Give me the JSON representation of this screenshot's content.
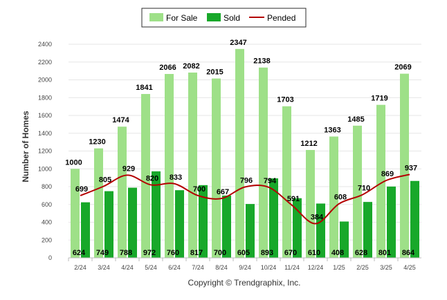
{
  "chart_data": {
    "type": "bar",
    "title": "",
    "xlabel": "",
    "ylabel": "Number of Homes",
    "ylim": [
      0,
      2400
    ],
    "yticks": [
      0,
      200,
      400,
      600,
      800,
      1000,
      1200,
      1400,
      1600,
      1800,
      2000,
      2200,
      2400
    ],
    "grid": true,
    "legend_position": "top-center",
    "categories": [
      "2/24",
      "3/24",
      "4/24",
      "5/24",
      "6/24",
      "7/24",
      "8/24",
      "9/24",
      "10/24",
      "11/24",
      "12/24",
      "1/25",
      "2/25",
      "3/25",
      "4/25"
    ],
    "series": [
      {
        "name": "For Sale",
        "kind": "bar",
        "color": "#9ee088",
        "values": [
          1000,
          1230,
          1474,
          1841,
          2066,
          2082,
          2015,
          2347,
          2138,
          1703,
          1212,
          1363,
          1485,
          1719,
          2069
        ]
      },
      {
        "name": "Sold",
        "kind": "bar",
        "color": "#18a82a",
        "values": [
          624,
          749,
          788,
          972,
          760,
          817,
          700,
          605,
          893,
          670,
          610,
          408,
          628,
          801,
          864
        ]
      },
      {
        "name": "Pended",
        "kind": "line",
        "color": "#b40000",
        "values": [
          699,
          805,
          929,
          820,
          833,
          700,
          667,
          796,
          794,
          591,
          384,
          608,
          710,
          869,
          937
        ]
      }
    ]
  },
  "footer": {
    "copyright": "Copyright © Trendgraphix, Inc."
  }
}
